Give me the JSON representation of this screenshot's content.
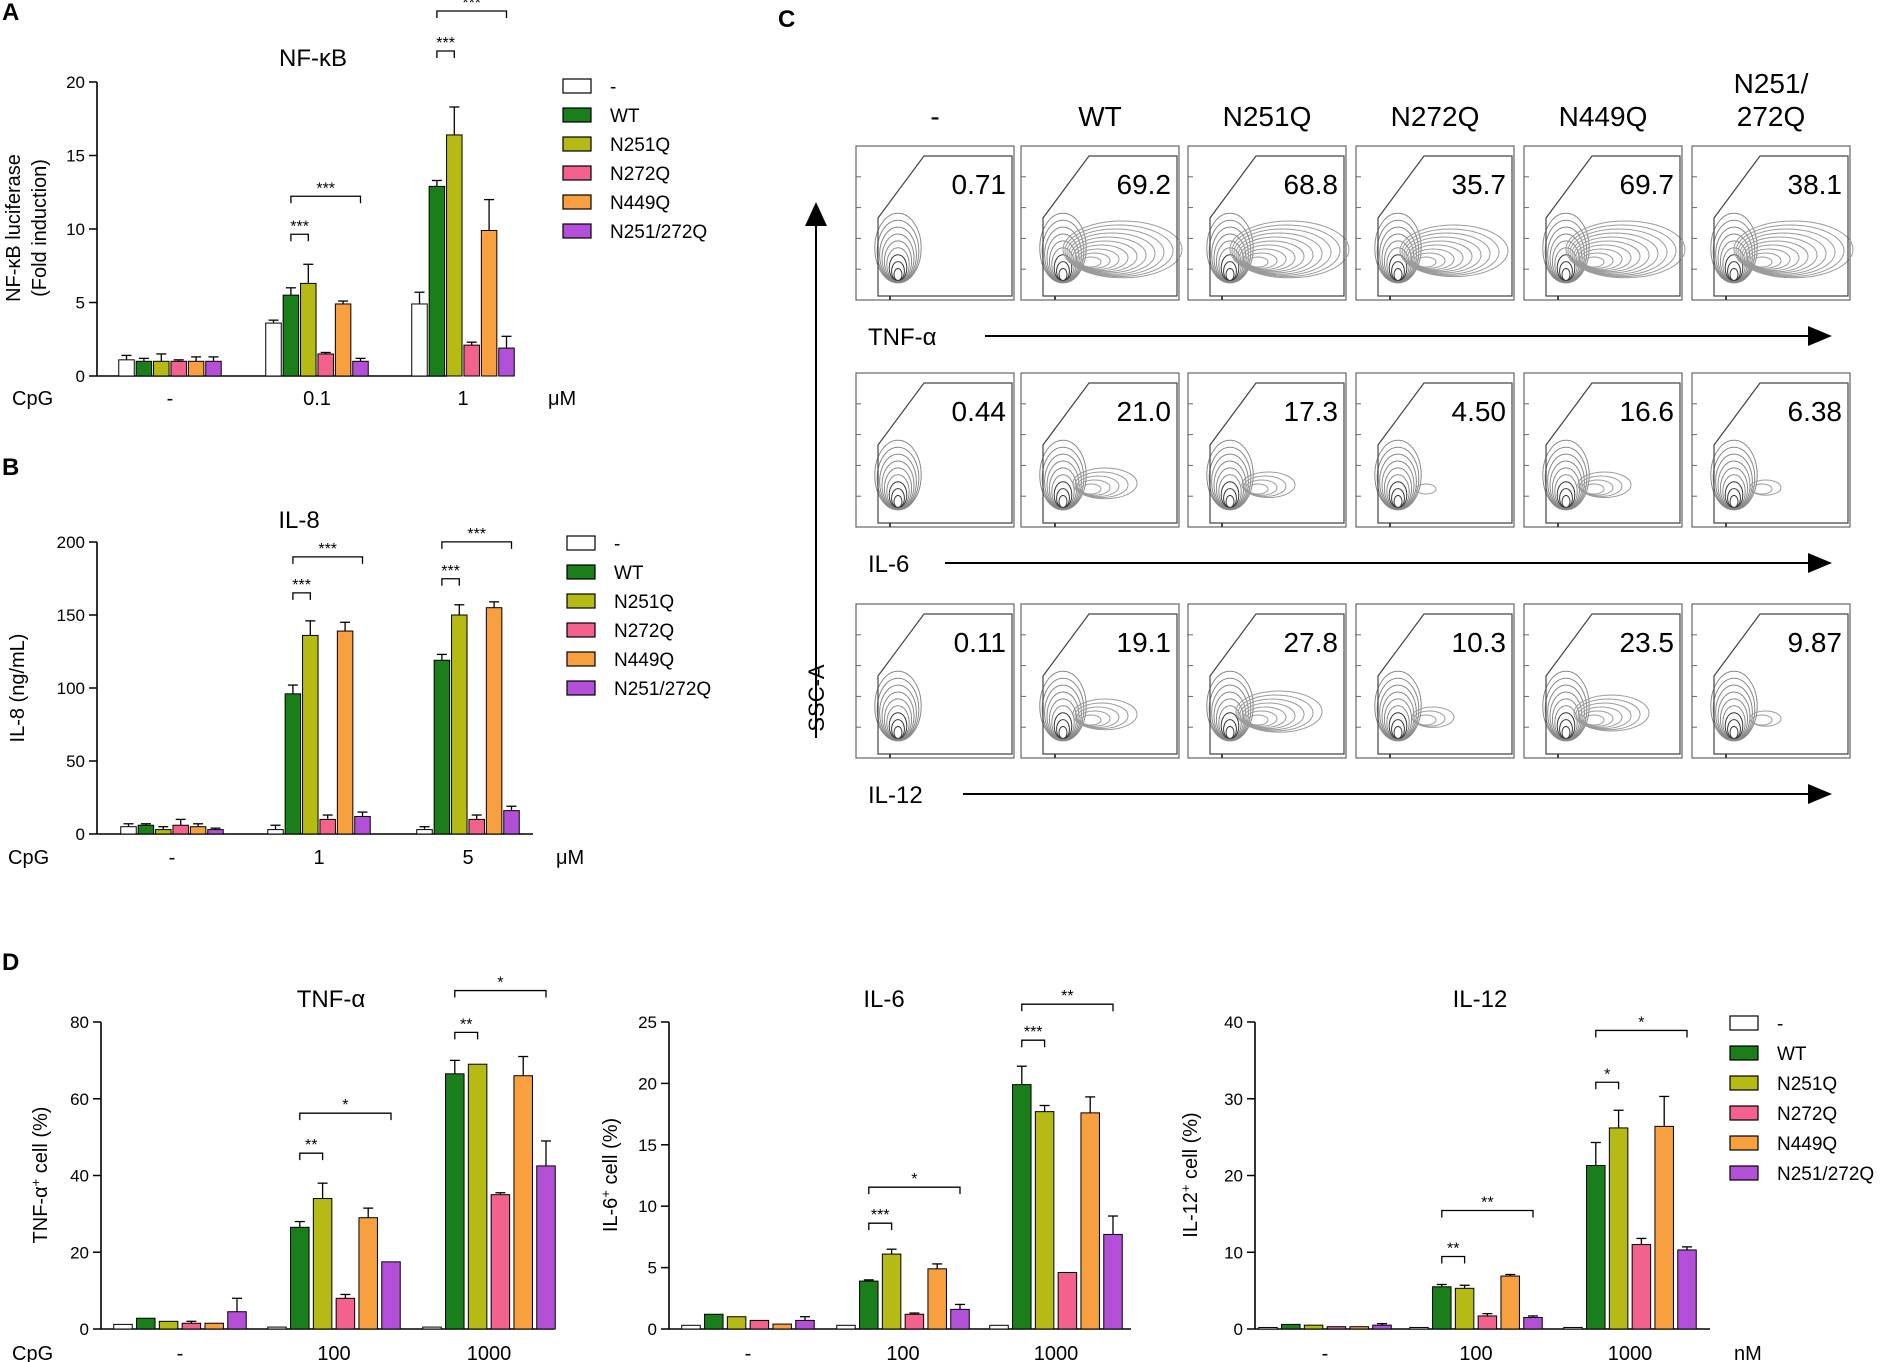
{
  "panel_labels": {
    "A": "A",
    "B": "B",
    "C": "C",
    "D": "D"
  },
  "colors": {
    "-": "#ffffff",
    "WT": "#1a7f1a",
    "N251Q": "#b5bb14",
    "N272Q": "#f2628c",
    "N449Q": "#f8a040",
    "N251/272Q": "#b450d8"
  },
  "legend_items": [
    "-",
    "WT",
    "N251Q",
    "N272Q",
    "N449Q",
    "N251/272Q"
  ],
  "chart_data": [
    {
      "id": "A",
      "type": "bar",
      "title": "NF-κB",
      "ylabel": "NF-κB luciferase",
      "ylabel2": "(Fold induction)",
      "xlabel_prefix": "CpG",
      "unit": "μM",
      "categories": [
        "-",
        "0.1",
        "1"
      ],
      "ylim": [
        0,
        20
      ],
      "yticks": [
        0,
        5,
        10,
        15,
        20
      ],
      "series": [
        {
          "name": "-",
          "values": [
            1.1,
            3.6,
            4.9
          ],
          "errors": [
            0.3,
            0.2,
            0.8
          ]
        },
        {
          "name": "WT",
          "values": [
            1.0,
            5.5,
            12.9
          ],
          "errors": [
            0.2,
            0.5,
            0.4
          ]
        },
        {
          "name": "N251Q",
          "values": [
            1.0,
            6.3,
            16.4
          ],
          "errors": [
            0.5,
            1.3,
            1.9
          ]
        },
        {
          "name": "N272Q",
          "values": [
            1.0,
            1.5,
            2.1
          ],
          "errors": [
            0.1,
            0.1,
            0.2
          ]
        },
        {
          "name": "N449Q",
          "values": [
            1.0,
            4.9,
            9.9
          ],
          "errors": [
            0.3,
            0.2,
            2.1
          ]
        },
        {
          "name": "N251/272Q",
          "values": [
            1.0,
            1.0,
            1.9
          ],
          "errors": [
            0.3,
            0.2,
            0.8
          ]
        }
      ],
      "significance": [
        {
          "group": 1,
          "from": 1,
          "to": 2,
          "label": "***"
        },
        {
          "group": 1,
          "from": 1,
          "to": 5,
          "label": "***"
        },
        {
          "group": 2,
          "from": 1,
          "to": 2,
          "label": "***"
        },
        {
          "group": 2,
          "from": 1,
          "to": 5,
          "label": "***"
        }
      ]
    },
    {
      "id": "B",
      "type": "bar",
      "title": "IL-8",
      "ylabel": "IL-8 (ng/mL)",
      "ylabel2": "",
      "xlabel_prefix": "CpG",
      "unit": "μM",
      "categories": [
        "-",
        "1",
        "5"
      ],
      "ylim": [
        0,
        200
      ],
      "yticks": [
        0,
        50,
        100,
        150,
        200
      ],
      "series": [
        {
          "name": "-",
          "values": [
            5,
            3,
            3
          ],
          "errors": [
            2,
            3,
            2
          ]
        },
        {
          "name": "WT",
          "values": [
            6,
            96,
            119
          ],
          "errors": [
            1,
            6,
            4
          ]
        },
        {
          "name": "N251Q",
          "values": [
            3,
            136,
            150
          ],
          "errors": [
            2,
            10,
            7
          ]
        },
        {
          "name": "N272Q",
          "values": [
            6,
            10,
            10
          ],
          "errors": [
            4,
            3,
            3
          ]
        },
        {
          "name": "N449Q",
          "values": [
            5,
            139,
            155
          ],
          "errors": [
            2,
            6,
            4
          ]
        },
        {
          "name": "N251/272Q",
          "values": [
            3,
            12,
            16
          ],
          "errors": [
            1,
            3,
            3
          ]
        }
      ],
      "significance": [
        {
          "group": 1,
          "from": 1,
          "to": 2,
          "label": "***"
        },
        {
          "group": 1,
          "from": 1,
          "to": 5,
          "label": "***"
        },
        {
          "group": 2,
          "from": 1,
          "to": 2,
          "label": "***"
        },
        {
          "group": 2,
          "from": 1,
          "to": 5,
          "label": "***"
        }
      ]
    },
    {
      "id": "D1",
      "type": "bar",
      "title": "TNF-α",
      "ylabel": "TNF-α",
      "ylabel_sup": "+",
      "ylabel_rest": " cell (%)",
      "xlabel_prefix": "CpG",
      "unit": "",
      "categories": [
        "-",
        "100",
        "1000"
      ],
      "ylim": [
        0,
        80
      ],
      "yticks": [
        0,
        20,
        40,
        60,
        80
      ],
      "series": [
        {
          "name": "-",
          "values": [
            1.2,
            0.5,
            0.5
          ],
          "errors": [
            0,
            0,
            0
          ]
        },
        {
          "name": "WT",
          "values": [
            2.8,
            26.5,
            66.5
          ],
          "errors": [
            0,
            1.5,
            3.5
          ]
        },
        {
          "name": "N251Q",
          "values": [
            2.0,
            34.0,
            69.0
          ],
          "errors": [
            0,
            4.0,
            0
          ]
        },
        {
          "name": "N272Q",
          "values": [
            1.5,
            8.0,
            35.0
          ],
          "errors": [
            0.5,
            1.0,
            0.5
          ]
        },
        {
          "name": "N449Q",
          "values": [
            1.5,
            29.0,
            66.0
          ],
          "errors": [
            0,
            2.5,
            5.0
          ]
        },
        {
          "name": "N251/272Q",
          "values": [
            4.5,
            17.5,
            42.5
          ],
          "errors": [
            3.5,
            0,
            6.5
          ]
        }
      ],
      "significance": [
        {
          "group": 1,
          "from": 1,
          "to": 2,
          "label": "**"
        },
        {
          "group": 1,
          "from": 1,
          "to": 5,
          "label": "*"
        },
        {
          "group": 2,
          "from": 1,
          "to": 2,
          "label": "**"
        },
        {
          "group": 2,
          "from": 1,
          "to": 5,
          "label": "*"
        }
      ]
    },
    {
      "id": "D2",
      "type": "bar",
      "title": "IL-6",
      "ylabel": "IL-6",
      "ylabel_sup": "+",
      "ylabel_rest": " cell (%)",
      "xlabel_prefix": "",
      "unit": "",
      "categories": [
        "-",
        "100",
        "1000"
      ],
      "ylim": [
        0,
        25
      ],
      "yticks": [
        0,
        5,
        10,
        15,
        20,
        25
      ],
      "series": [
        {
          "name": "-",
          "values": [
            0.3,
            0.3,
            0.3
          ],
          "errors": [
            0,
            0,
            0
          ]
        },
        {
          "name": "WT",
          "values": [
            1.2,
            3.9,
            19.9
          ],
          "errors": [
            0,
            0.1,
            1.5
          ]
        },
        {
          "name": "N251Q",
          "values": [
            1.0,
            6.1,
            17.7
          ],
          "errors": [
            0,
            0.4,
            0.5
          ]
        },
        {
          "name": "N272Q",
          "values": [
            0.7,
            1.2,
            4.6
          ],
          "errors": [
            0,
            0.1,
            0
          ]
        },
        {
          "name": "N449Q",
          "values": [
            0.4,
            4.9,
            17.6
          ],
          "errors": [
            0,
            0.4,
            1.3
          ]
        },
        {
          "name": "N251/272Q",
          "values": [
            0.7,
            1.6,
            7.7
          ],
          "errors": [
            0.3,
            0.4,
            1.5
          ]
        }
      ],
      "significance": [
        {
          "group": 1,
          "from": 1,
          "to": 2,
          "label": "***"
        },
        {
          "group": 1,
          "from": 1,
          "to": 5,
          "label": "*"
        },
        {
          "group": 2,
          "from": 1,
          "to": 2,
          "label": "***"
        },
        {
          "group": 2,
          "from": 1,
          "to": 5,
          "label": "**"
        }
      ]
    },
    {
      "id": "D3",
      "type": "bar",
      "title": "IL-12",
      "ylabel": "IL-12",
      "ylabel_sup": "+",
      "ylabel_rest": " cell (%)",
      "xlabel_prefix": "",
      "unit": "nM",
      "categories": [
        "-",
        "100",
        "1000"
      ],
      "ylim": [
        0,
        40
      ],
      "yticks": [
        0,
        10,
        20,
        30,
        40
      ],
      "series": [
        {
          "name": "-",
          "values": [
            0.2,
            0.2,
            0.2
          ],
          "errors": [
            0,
            0,
            0
          ]
        },
        {
          "name": "WT",
          "values": [
            0.6,
            5.5,
            21.3
          ],
          "errors": [
            0,
            0.3,
            3.0
          ]
        },
        {
          "name": "N251Q",
          "values": [
            0.5,
            5.3,
            26.2
          ],
          "errors": [
            0,
            0.4,
            2.3
          ]
        },
        {
          "name": "N272Q",
          "values": [
            0.3,
            1.7,
            11.0
          ],
          "errors": [
            0,
            0.3,
            0.8
          ]
        },
        {
          "name": "N449Q",
          "values": [
            0.3,
            6.9,
            26.4
          ],
          "errors": [
            0,
            0.2,
            3.9
          ]
        },
        {
          "name": "N251/272Q",
          "values": [
            0.5,
            1.5,
            10.3
          ],
          "errors": [
            0.2,
            0.2,
            0.4
          ]
        }
      ],
      "significance": [
        {
          "group": 1,
          "from": 1,
          "to": 2,
          "label": "**"
        },
        {
          "group": 1,
          "from": 1,
          "to": 5,
          "label": "**"
        },
        {
          "group": 2,
          "from": 1,
          "to": 2,
          "label": "*"
        },
        {
          "group": 2,
          "from": 1,
          "to": 5,
          "label": "*"
        }
      ]
    }
  ],
  "flow": {
    "columns": [
      "-",
      "WT",
      "N251Q",
      "N272Q",
      "N449Q",
      "N251/\n272Q"
    ],
    "rows": [
      {
        "label": "TNF-α",
        "values": [
          "0.71",
          "69.2",
          "68.8",
          "35.7",
          "69.7",
          "38.1"
        ]
      },
      {
        "label": "IL-6",
        "values": [
          "0.44",
          "21.0",
          "17.3",
          "4.50",
          "16.6",
          "6.38"
        ]
      },
      {
        "label": "IL-12",
        "values": [
          "0.11",
          "19.1",
          "27.8",
          "10.3",
          "23.5",
          "9.87"
        ]
      }
    ],
    "y_axis_label": "SSC-A"
  }
}
